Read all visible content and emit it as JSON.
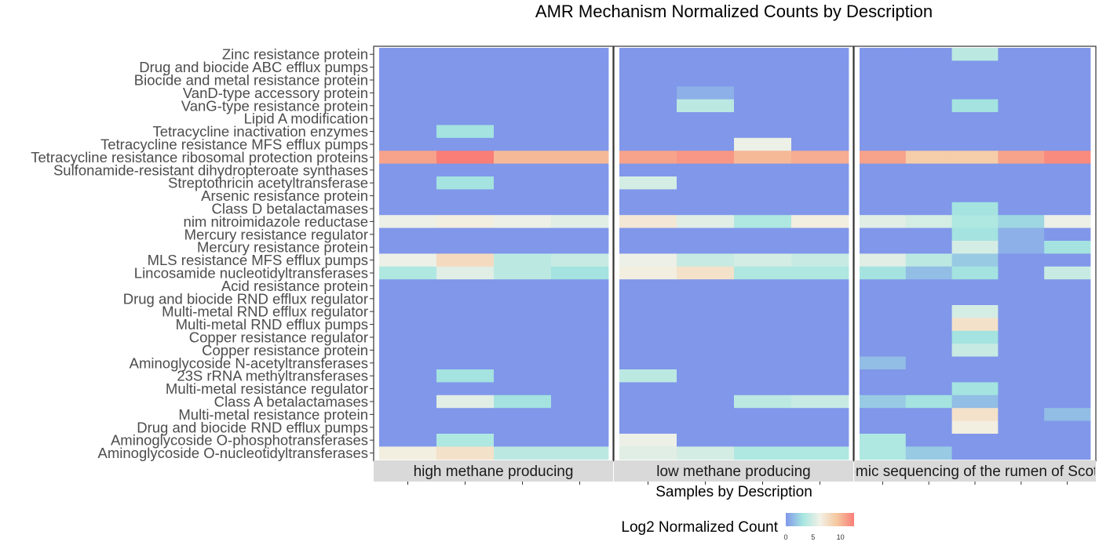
{
  "chart_data": {
    "type": "heatmap",
    "title": "AMR Mechanism Normalized Counts by Description",
    "xlabel": "Samples by Description",
    "ylabel": "",
    "facets": [
      {
        "label": "high methane producing",
        "n_samples": 4
      },
      {
        "label": "low methane producing",
        "n_samples": 4
      },
      {
        "label": "Metagenomic sequencing of the rumen of Scottish cattle",
        "n_samples": 5
      }
    ],
    "rows": [
      "Zinc resistance protein",
      "Drug and biocide ABC efflux pumps",
      "Biocide and metal resistance protein",
      "VanD-type accessory protein",
      "VanG-type resistance protein",
      "Lipid A modification",
      "Tetracycline inactivation enzymes",
      "Tetracycline resistance MFS efflux pumps",
      "Tetracycline resistance ribosomal protection proteins",
      "Sulfonamide-resistant dihydropteroate synthases",
      "Streptothricin acetyltransferase",
      "Arsenic resistance protein",
      "Class D betalactamases",
      "nim nitroimidazole reductase",
      "Mercury resistance regulator",
      "Mercury resistance protein",
      "MLS resistance MFS efflux pumps",
      "Lincosamide nucleotidyltransferases",
      "Acid resistance protein",
      "Drug and biocide RND efflux regulator",
      "Multi-metal RND efflux regulator",
      "Multi-metal RND efflux pumps",
      "Copper resistance regulator",
      "Copper resistance protein",
      "Aminoglycoside N-acetyltransferases",
      "23S rRNA methyltransferases",
      "Multi-metal resistance regulator",
      "Class A betalactamases",
      "Multi-metal resistance protein",
      "Drug and biocide RND efflux pumps",
      "Aminoglycoside O-phosphotransferases",
      "Aminoglycoside O-nucleotidyltransferases"
    ],
    "values": [
      [
        0,
        0,
        0,
        0,
        0,
        0,
        0,
        0,
        0,
        0,
        4,
        0,
        0
      ],
      [
        0,
        0,
        0,
        0,
        0,
        0,
        0,
        0,
        0,
        0,
        0,
        0,
        0
      ],
      [
        0,
        0,
        0,
        0,
        0,
        0,
        0,
        0,
        0,
        0,
        0,
        0,
        0
      ],
      [
        0,
        0,
        0,
        0,
        0,
        1,
        0,
        0,
        0,
        0,
        0,
        0,
        0
      ],
      [
        0,
        0,
        0,
        0,
        0,
        4,
        0,
        0,
        0,
        0,
        3,
        0,
        0
      ],
      [
        0,
        0,
        0,
        0,
        0,
        0,
        0,
        0,
        0,
        0,
        0,
        0,
        0
      ],
      [
        0,
        3,
        0,
        0,
        0,
        0,
        0,
        0,
        0,
        0,
        0,
        0,
        0
      ],
      [
        0,
        0,
        0,
        0,
        0,
        0,
        6,
        0,
        0,
        0,
        0,
        0,
        0
      ],
      [
        11,
        12.5,
        10,
        10,
        11,
        11.5,
        10,
        10.5,
        11,
        9,
        9,
        11,
        12
      ],
      [
        0,
        0,
        0,
        0,
        0,
        0,
        0,
        0,
        0,
        0,
        0,
        0,
        0
      ],
      [
        0,
        3,
        0,
        0,
        5,
        0,
        0,
        0,
        0,
        0,
        0,
        0,
        0
      ],
      [
        0,
        0,
        0,
        0,
        0,
        0,
        0,
        0,
        0,
        0,
        0,
        0,
        0
      ],
      [
        0,
        0,
        0,
        0,
        0,
        0,
        0,
        0,
        0,
        0,
        3,
        0,
        0
      ],
      [
        6,
        6.5,
        6,
        5.5,
        7,
        5.5,
        3.5,
        6.5,
        5.5,
        5,
        3.5,
        2.5,
        6
      ],
      [
        0,
        0,
        0,
        0,
        0,
        0,
        0,
        0,
        0,
        0,
        3,
        1,
        0
      ],
      [
        0,
        0,
        0,
        0,
        0,
        0,
        0,
        0,
        0,
        0,
        5,
        1,
        3
      ],
      [
        6,
        8,
        4,
        4.5,
        6,
        4.5,
        5,
        4.5,
        5.5,
        4,
        2,
        0,
        0
      ],
      [
        3.5,
        5.5,
        4,
        3,
        6.5,
        7.5,
        3.5,
        3.5,
        3,
        1.5,
        3,
        0,
        4.5
      ],
      [
        0,
        0,
        0,
        0,
        0,
        0,
        0,
        0,
        0,
        0,
        0,
        0,
        0
      ],
      [
        0,
        0,
        0,
        0,
        0,
        0,
        0,
        0,
        0,
        0,
        0,
        0,
        0
      ],
      [
        0,
        0,
        0,
        0,
        0,
        0,
        0,
        0,
        0,
        0,
        5,
        0,
        0
      ],
      [
        0,
        0,
        0,
        0,
        0,
        0,
        0,
        0,
        0,
        0,
        7.5,
        0,
        0
      ],
      [
        0,
        0,
        0,
        0,
        0,
        0,
        0,
        0,
        0,
        0,
        3,
        0,
        0
      ],
      [
        0,
        0,
        0,
        0,
        0,
        0,
        0,
        0,
        0,
        0,
        4.5,
        0,
        0
      ],
      [
        0,
        0,
        0,
        0,
        0,
        0,
        0,
        0,
        1.5,
        0,
        0,
        0,
        0
      ],
      [
        0,
        3,
        0,
        0,
        4,
        0,
        0,
        0,
        0,
        0,
        0,
        0,
        0
      ],
      [
        0,
        0,
        0,
        0,
        0,
        0,
        0,
        0,
        0,
        0,
        3,
        0,
        0
      ],
      [
        0,
        5.5,
        3,
        0,
        0,
        0,
        4,
        4.5,
        2,
        3,
        1.5,
        0,
        0
      ],
      [
        0,
        0,
        0,
        0,
        0,
        0,
        0,
        0,
        0,
        0,
        7.5,
        0,
        1.5
      ],
      [
        0,
        0,
        0,
        0,
        0,
        0,
        0,
        0,
        0,
        0,
        6.5,
        0,
        0
      ],
      [
        0,
        3.5,
        0,
        0,
        6,
        0,
        0,
        0,
        3.5,
        0,
        0,
        0,
        0
      ],
      [
        6.5,
        7.5,
        4,
        4,
        5.5,
        5,
        3.5,
        3.5,
        3.5,
        2,
        0,
        0,
        0
      ]
    ],
    "legend": {
      "title": "Log2 Normalized Count",
      "placement": "bottom",
      "ticks": [
        "0",
        "5",
        "10"
      ],
      "range": [
        0,
        12.5
      ],
      "colors": [
        "#8097ea",
        "#a6e6e0",
        "#f2f1e6",
        "#f5c8a0",
        "#f97e78"
      ]
    },
    "styling": {
      "panel_border": "#333333",
      "strip_fill": "#d9d9d9",
      "label_color": "#4d4d4d",
      "tick_color": "#333333"
    }
  }
}
